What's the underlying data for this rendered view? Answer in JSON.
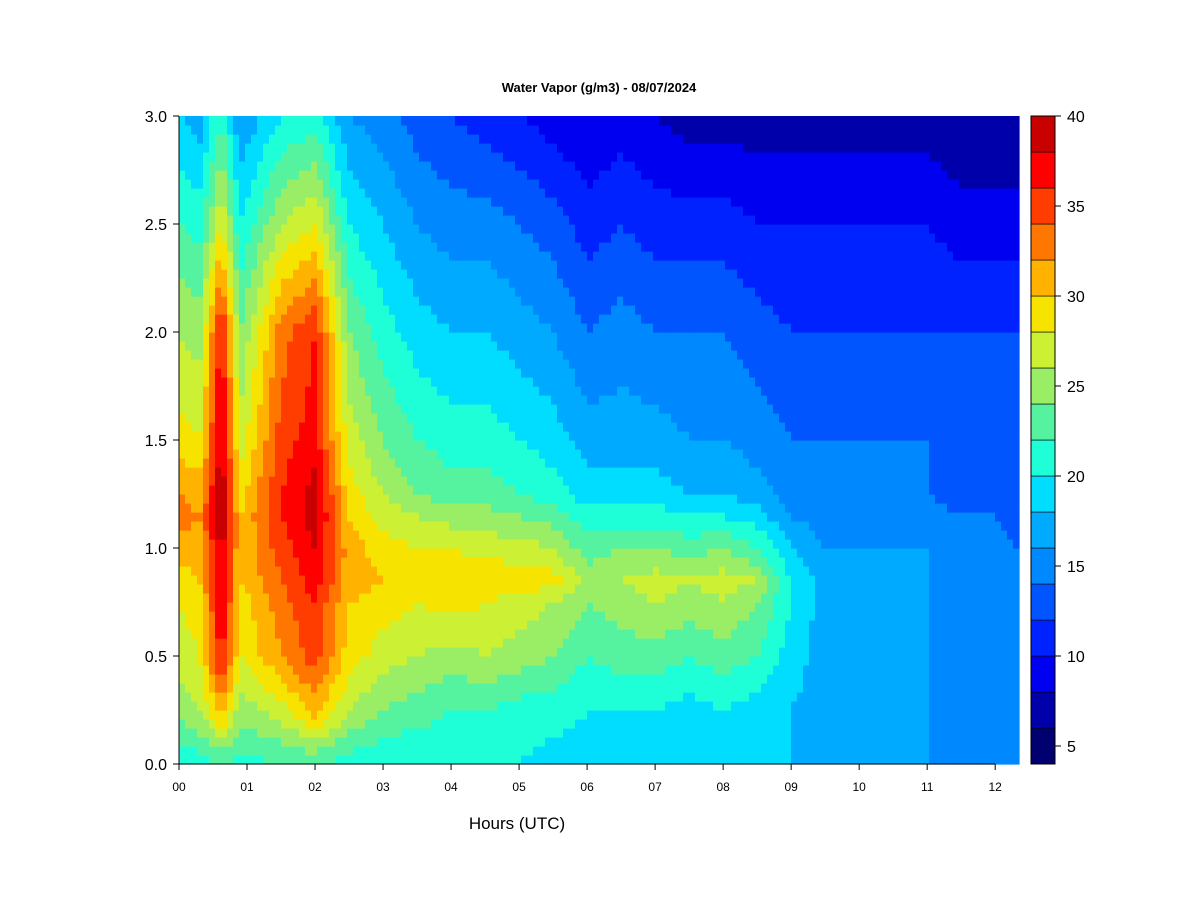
{
  "chart_data": {
    "type": "heatmap",
    "title": "Water Vapor (g/m3) - 08/07/2024",
    "xlabel": "Hours (UTC)",
    "ylabel": "",
    "xlim": [
      0,
      12.35
    ],
    "ylim": [
      0,
      3.0
    ],
    "x_ticks": [
      "00",
      "01",
      "02",
      "03",
      "04",
      "05",
      "06",
      "07",
      "08",
      "09",
      "10",
      "11",
      "12"
    ],
    "y_ticks": [
      "0.0",
      "0.5",
      "1.0",
      "1.5",
      "2.0",
      "2.5",
      "3.0"
    ],
    "colorbar": {
      "levels": [
        4,
        6,
        8,
        10,
        12,
        14,
        16,
        18,
        20,
        22,
        24,
        26,
        28,
        30,
        32,
        34,
        36,
        38,
        40
      ],
      "tick_labels": [
        "5",
        "10",
        "15",
        "20",
        "25",
        "30",
        "35",
        "40"
      ],
      "colors": [
        "#00006e",
        "#0000aa",
        "#0000f0",
        "#0022ff",
        "#0055ff",
        "#0088ff",
        "#00aaff",
        "#00ddff",
        "#1effd8",
        "#55f3a0",
        "#99ee66",
        "#ccf033",
        "#f7e300",
        "#ffb300",
        "#ff7700",
        "#ff3d00",
        "#ff0000",
        "#c80000",
        "#7f0000"
      ]
    },
    "series": [
      {
        "heights_km": [
          0.0,
          0.25,
          0.5,
          0.75,
          0.85,
          1.0,
          1.15,
          1.25,
          1.5,
          2.0,
          2.5,
          3.0
        ],
        "hours": [
          0,
          0.3,
          0.62,
          0.9,
          1.5,
          2.0,
          2.5,
          3.0,
          3.5,
          4.0,
          4.5,
          5.0,
          5.5,
          6.0,
          6.5,
          7.0,
          7.5,
          8.0,
          8.5,
          9.0,
          9.5,
          10.0,
          10.5,
          11.0,
          11.5,
          12.0,
          12.35
        ],
        "values": [
          [
            20,
            21,
            22,
            21,
            22,
            22,
            21,
            20,
            20,
            20,
            20,
            20,
            19,
            19,
            19,
            19,
            19,
            19,
            19,
            18,
            18,
            17,
            17,
            16,
            15,
            15,
            15
          ],
          [
            25,
            26,
            31,
            25,
            27,
            31,
            26,
            24,
            23,
            22,
            22,
            21,
            21,
            20,
            20,
            20,
            19,
            20,
            19,
            18,
            17,
            17,
            16,
            16,
            15,
            15,
            15
          ],
          [
            27,
            28,
            37,
            28,
            32,
            35,
            29,
            27,
            26,
            25,
            26,
            25,
            24,
            22,
            23,
            23,
            22,
            23,
            22,
            19,
            17,
            16,
            16,
            16,
            15,
            15,
            15
          ],
          [
            28,
            29,
            38,
            29,
            33,
            36,
            30,
            29,
            28,
            29,
            28,
            27,
            26,
            24,
            25,
            26,
            25,
            26,
            24,
            20,
            17,
            16,
            16,
            16,
            15,
            15,
            15
          ],
          [
            29,
            30,
            39,
            30,
            34,
            37,
            31,
            30,
            29,
            30,
            30,
            29,
            29,
            25,
            26,
            27,
            26,
            27,
            26,
            20,
            17,
            16,
            16,
            16,
            15,
            15,
            15
          ],
          [
            31,
            31,
            39,
            30,
            35,
            38,
            31,
            29,
            28,
            28,
            27,
            27,
            26,
            23,
            24,
            24,
            23,
            24,
            22,
            18,
            16,
            16,
            16,
            16,
            15,
            15,
            14
          ],
          [
            33,
            32,
            40,
            30,
            36,
            39,
            30,
            27,
            26,
            25,
            25,
            24,
            23,
            21,
            21,
            21,
            20,
            20,
            19,
            16,
            15,
            15,
            15,
            15,
            14,
            14,
            13
          ],
          [
            32,
            31,
            40,
            29,
            36,
            39,
            29,
            26,
            24,
            23,
            23,
            22,
            21,
            19,
            19,
            19,
            18,
            18,
            17,
            15,
            14,
            14,
            14,
            14,
            13,
            13,
            13
          ],
          [
            29,
            28,
            39,
            27,
            35,
            37,
            27,
            24,
            22,
            21,
            21,
            20,
            19,
            17,
            17,
            17,
            16,
            16,
            15,
            14,
            14,
            14,
            14,
            14,
            13,
            13,
            13
          ],
          [
            26,
            25,
            37,
            24,
            33,
            36,
            24,
            21,
            19,
            18,
            18,
            17,
            16,
            14,
            15,
            14,
            14,
            14,
            13,
            12,
            12,
            12,
            12,
            12,
            12,
            12,
            12
          ],
          [
            22,
            21,
            28,
            20,
            26,
            28,
            20,
            18,
            16,
            15,
            15,
            14,
            13,
            11,
            12,
            11,
            11,
            11,
            10,
            10,
            10,
            10,
            10,
            10,
            9,
            9,
            9
          ],
          [
            18,
            17,
            22,
            16,
            20,
            21,
            16,
            15,
            13,
            12,
            11,
            10,
            9,
            8,
            9,
            8,
            7,
            7,
            7,
            7,
            7,
            7,
            7,
            7,
            6,
            6,
            6
          ]
        ]
      }
    ]
  }
}
